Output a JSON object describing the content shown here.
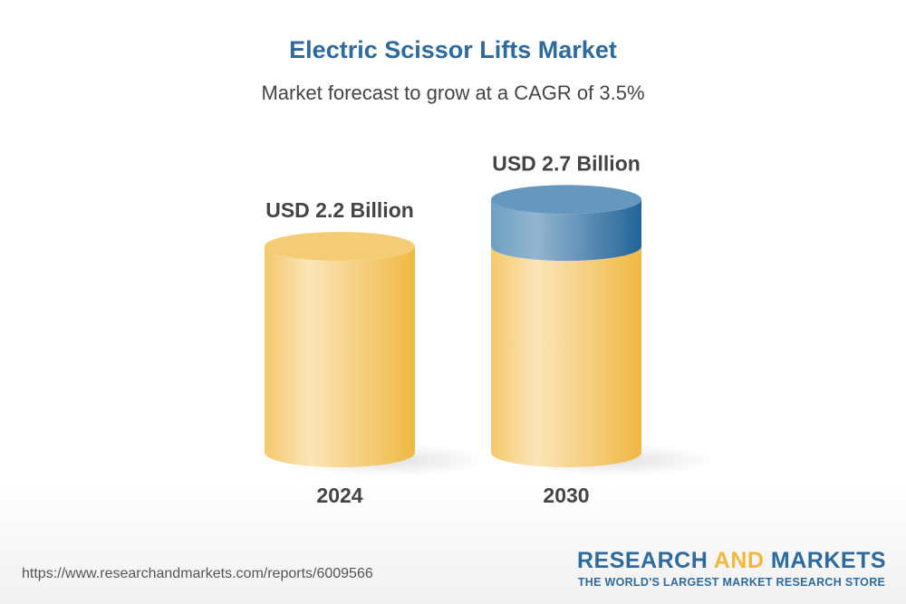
{
  "title": "Electric Scissor Lifts Market",
  "subtitle": "Market forecast to grow at a CAGR of 3.5%",
  "chart_data": {
    "type": "bar",
    "style": "3d-cylinder",
    "categories": [
      "2024",
      "2030"
    ],
    "values": [
      2.2,
      2.7
    ],
    "data_labels": [
      "USD 2.2 Billion",
      "USD 2.7 Billion"
    ],
    "unit": "USD Billion",
    "colors": {
      "base": "#f1b83a",
      "growth": "#2d6a9f"
    }
  },
  "footer": {
    "url": "https://www.researchandmarkets.com/reports/6009566",
    "logo_part1": "RESEARCH ",
    "logo_part2": "AND",
    "logo_part3": " MARKETS",
    "tagline": "THE WORLD'S LARGEST MARKET RESEARCH STORE"
  }
}
